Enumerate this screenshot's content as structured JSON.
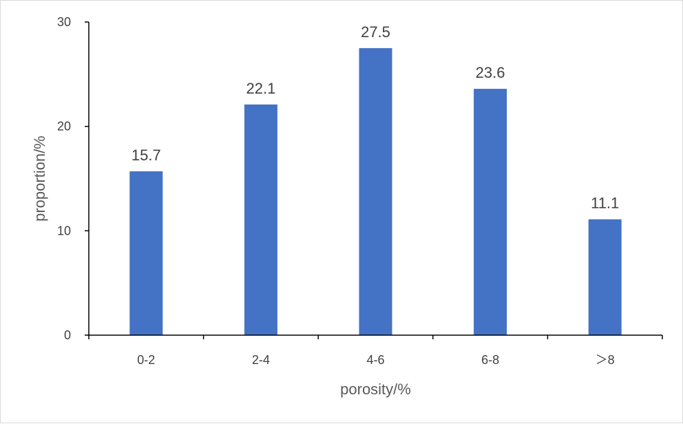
{
  "chart_data": {
    "type": "bar",
    "categories": [
      "0-2",
      "2-4",
      "4-6",
      "6-8",
      "＞8"
    ],
    "values": [
      15.7,
      22.1,
      27.5,
      23.6,
      11.1
    ],
    "data_labels": [
      "15.7",
      "22.1",
      "27.5",
      "23.6",
      "11.1"
    ],
    "xlabel": "porosity/%",
    "ylabel": "proportion/%",
    "ylim": [
      0,
      30
    ],
    "yticks": [
      0,
      10,
      20,
      30
    ],
    "ytick_labels": [
      "0",
      "10",
      "20",
      "30"
    ],
    "bar_color": "#4472c4",
    "axis_color": "#000000",
    "grid": false,
    "legend": "none"
  }
}
